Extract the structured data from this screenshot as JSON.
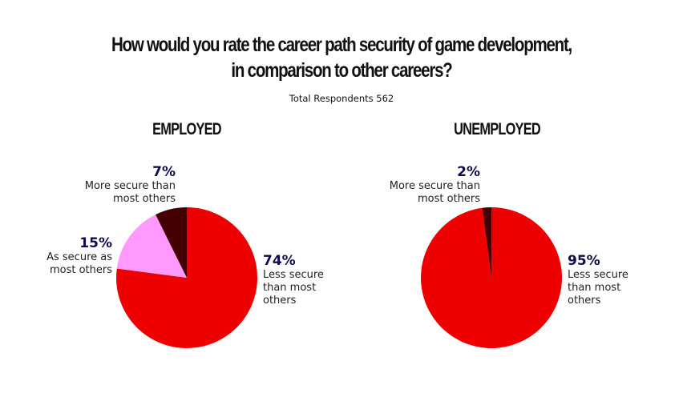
{
  "chart_data": [
    {
      "type": "pie",
      "title": "EMPLOYED",
      "slices": [
        {
          "label": "Less secure than most others",
          "value": 74,
          "pct_label": "74%",
          "color": "#ee0000"
        },
        {
          "label": "As secure as most others",
          "value": 15,
          "pct_label": "15%",
          "color": "#ff99ff"
        },
        {
          "label": "More secure than most others",
          "value": 7,
          "pct_label": "7%",
          "color": "#440000"
        }
      ]
    },
    {
      "type": "pie",
      "title": "UNEMPLOYED",
      "slices": [
        {
          "label": "Less secure than most others",
          "value": 95,
          "pct_label": "95%",
          "color": "#ee0000"
        },
        {
          "label": "More secure than most others",
          "value": 2,
          "pct_label": "2%",
          "color": "#440000"
        }
      ]
    }
  ],
  "header": {
    "title_line1": "How would you rate the career path security of game development,",
    "title_line2": "in comparison to other careers?",
    "subtitle": "Total Respondents 562"
  }
}
